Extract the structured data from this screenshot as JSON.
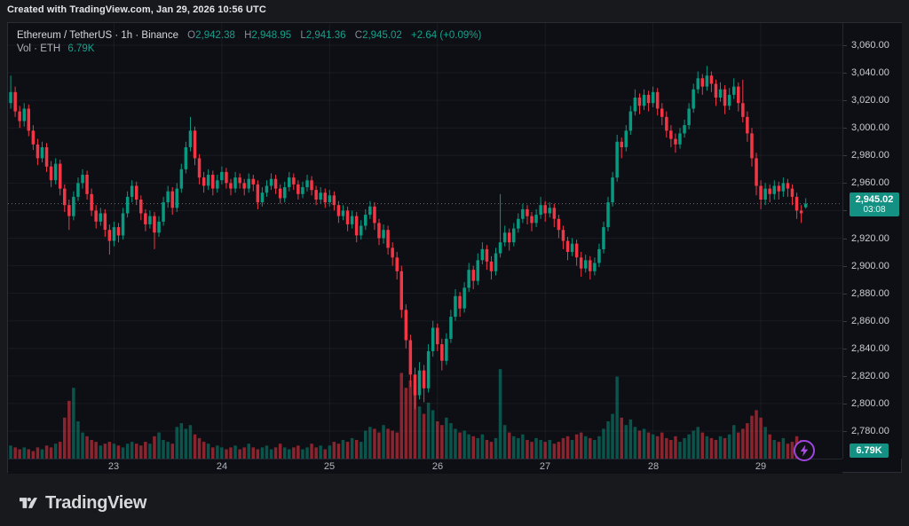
{
  "attribution": "Created with TradingView.com, Jan 29, 2026 10:56 UTC",
  "legend": {
    "title": "Ethereum / TetherUS · 1h · Binance",
    "ohlc": {
      "o_label": "O",
      "o": "2,942.38",
      "h_label": "H",
      "h": "2,948.95",
      "l_label": "L",
      "l": "2,941.36",
      "c_label": "C",
      "c": "2,945.02",
      "change": "+2.64 (+0.09%)"
    },
    "volume_label": "Vol · ETH",
    "volume_value": "6.79K"
  },
  "price_axis": {
    "labels": [
      "3,060.00",
      "3,040.00",
      "3,020.00",
      "3,000.00",
      "2,980.00",
      "2,960.00",
      "2,940.00",
      "2,920.00",
      "2,900.00",
      "2,880.00",
      "2,860.00",
      "2,840.00",
      "2,820.00",
      "2,800.00",
      "2,780.00"
    ],
    "badge": {
      "price": "2,945.02",
      "countdown": "03:08"
    },
    "volume_badge": "6.79K"
  },
  "time_axis": {
    "labels": [
      {
        "text": "23",
        "bar_index": 24
      },
      {
        "text": "24",
        "bar_index": 48
      },
      {
        "text": "25",
        "bar_index": 72
      },
      {
        "text": "26",
        "bar_index": 96
      },
      {
        "text": "27",
        "bar_index": 120
      },
      {
        "text": "28",
        "bar_index": 144
      },
      {
        "text": "29",
        "bar_index": 168
      }
    ]
  },
  "footer": {
    "brand": "TradingView"
  },
  "colors": {
    "up": "#089981",
    "down": "#f23645",
    "vol_up": "rgba(8,153,129,0.5)",
    "vol_down": "rgba(242,54,69,0.55)",
    "grid": "rgba(240,243,250,0.055)",
    "last_line": "#1ca28c",
    "purple": "#a94ae6"
  },
  "chart_data": {
    "type": "candlestick+volume",
    "title": "Ethereum / TetherUS",
    "interval": "1h",
    "exchange": "Binance",
    "last_price": 2945.02,
    "last_change": "+2.64 (+0.09%)",
    "countdown": "03:08",
    "current_bar_volume_k": 6.79,
    "price_ticks": [
      3060,
      3040,
      3020,
      3000,
      2980,
      2960,
      2940,
      2920,
      2900,
      2880,
      2860,
      2840,
      2820,
      2800,
      2780
    ],
    "ylim": [
      2774,
      3064
    ],
    "grid": true,
    "legend_position": "top-left",
    "bars_format": [
      "open",
      "high",
      "low",
      "close",
      "volume_k"
    ],
    "bars": [
      [
        3010,
        3032,
        3004,
        3018,
        8
      ],
      [
        3018,
        3038,
        3014,
        3026,
        7
      ],
      [
        3026,
        3030,
        3008,
        3012,
        6
      ],
      [
        3012,
        3016,
        3000,
        3005,
        5
      ],
      [
        3005,
        3018,
        3001,
        3014,
        6
      ],
      [
        3014,
        3017,
        2994,
        2998,
        5
      ],
      [
        2998,
        3002,
        2984,
        2988,
        4
      ],
      [
        2988,
        2992,
        2973,
        2978,
        6
      ],
      [
        2978,
        2990,
        2975,
        2986,
        5
      ],
      [
        2986,
        2989,
        2968,
        2972,
        7
      ],
      [
        2972,
        2976,
        2957,
        2962,
        6
      ],
      [
        2962,
        2978,
        2959,
        2974,
        8
      ],
      [
        2974,
        2977,
        2951,
        2956,
        9
      ],
      [
        2956,
        2959,
        2939,
        2944,
        22
      ],
      [
        2944,
        2948,
        2926,
        2936,
        31
      ],
      [
        2936,
        2954,
        2933,
        2950,
        38
      ],
      [
        2950,
        2964,
        2947,
        2960,
        20
      ],
      [
        2960,
        2970,
        2956,
        2966,
        14
      ],
      [
        2966,
        2969,
        2948,
        2952,
        12
      ],
      [
        2952,
        2956,
        2936,
        2940,
        10
      ],
      [
        2940,
        2944,
        2927,
        2932,
        9
      ],
      [
        2932,
        2942,
        2929,
        2938,
        7
      ],
      [
        2938,
        2941,
        2921,
        2926,
        8
      ],
      [
        2926,
        2930,
        2908,
        2918,
        9
      ],
      [
        2918,
        2932,
        2914,
        2928,
        8
      ],
      [
        2928,
        2931,
        2917,
        2922,
        7
      ],
      [
        2922,
        2942,
        2919,
        2938,
        6
      ],
      [
        2938,
        2954,
        2935,
        2950,
        8
      ],
      [
        2950,
        2962,
        2946,
        2958,
        9
      ],
      [
        2958,
        2961,
        2944,
        2948,
        8
      ],
      [
        2948,
        2951,
        2933,
        2938,
        7
      ],
      [
        2938,
        2941,
        2925,
        2930,
        9
      ],
      [
        2930,
        2940,
        2927,
        2936,
        8
      ],
      [
        2936,
        2939,
        2912,
        2924,
        12
      ],
      [
        2924,
        2936,
        2921,
        2932,
        14
      ],
      [
        2932,
        2950,
        2929,
        2946,
        10
      ],
      [
        2946,
        2958,
        2942,
        2954,
        9
      ],
      [
        2954,
        2957,
        2937,
        2942,
        8
      ],
      [
        2942,
        2960,
        2939,
        2956,
        17
      ],
      [
        2956,
        2974,
        2953,
        2970,
        19
      ],
      [
        2970,
        2990,
        2967,
        2986,
        16
      ],
      [
        2986,
        3008,
        2983,
        2998,
        18
      ],
      [
        2998,
        3001,
        2973,
        2978,
        13
      ],
      [
        2978,
        2981,
        2959,
        2964,
        11
      ],
      [
        2964,
        2968,
        2953,
        2958,
        9
      ],
      [
        2958,
        2970,
        2955,
        2966,
        8
      ],
      [
        2966,
        2969,
        2951,
        2956,
        6
      ],
      [
        2956,
        2966,
        2953,
        2962,
        7
      ],
      [
        2962,
        2972,
        2959,
        2968,
        6
      ],
      [
        2968,
        2971,
        2956,
        2960,
        5
      ],
      [
        2960,
        2963,
        2951,
        2956,
        6
      ],
      [
        2956,
        2968,
        2953,
        2964,
        7
      ],
      [
        2964,
        2967,
        2956,
        2960,
        5
      ],
      [
        2960,
        2963,
        2951,
        2956,
        6
      ],
      [
        2956,
        2967,
        2953,
        2963,
        8
      ],
      [
        2963,
        2966,
        2954,
        2959,
        6
      ],
      [
        2959,
        2962,
        2941,
        2946,
        5
      ],
      [
        2946,
        2957,
        2943,
        2953,
        6
      ],
      [
        2953,
        2962,
        2950,
        2958,
        7
      ],
      [
        2958,
        2967,
        2955,
        2963,
        5
      ],
      [
        2963,
        2966,
        2952,
        2956,
        6
      ],
      [
        2956,
        2959,
        2945,
        2949,
        8
      ],
      [
        2949,
        2961,
        2946,
        2957,
        6
      ],
      [
        2957,
        2968,
        2954,
        2964,
        5
      ],
      [
        2964,
        2967,
        2955,
        2959,
        6
      ],
      [
        2959,
        2962,
        2948,
        2952,
        7
      ],
      [
        2952,
        2961,
        2949,
        2957,
        5
      ],
      [
        2957,
        2966,
        2954,
        2962,
        6
      ],
      [
        2962,
        2965,
        2951,
        2955,
        8
      ],
      [
        2955,
        2958,
        2944,
        2948,
        6
      ],
      [
        2948,
        2957,
        2945,
        2953,
        7
      ],
      [
        2953,
        2956,
        2942,
        2946,
        5
      ],
      [
        2946,
        2955,
        2943,
        2951,
        7
      ],
      [
        2951,
        2954,
        2940,
        2944,
        9
      ],
      [
        2944,
        2947,
        2931,
        2936,
        8
      ],
      [
        2936,
        2944,
        2933,
        2940,
        10
      ],
      [
        2940,
        2943,
        2925,
        2930,
        9
      ],
      [
        2930,
        2940,
        2927,
        2936,
        11
      ],
      [
        2936,
        2939,
        2917,
        2922,
        10
      ],
      [
        2922,
        2933,
        2919,
        2929,
        9
      ],
      [
        2929,
        2941,
        2926,
        2937,
        15
      ],
      [
        2937,
        2947,
        2934,
        2943,
        17
      ],
      [
        2943,
        2946,
        2926,
        2931,
        16
      ],
      [
        2931,
        2934,
        2915,
        2920,
        14
      ],
      [
        2920,
        2930,
        2916,
        2926,
        18
      ],
      [
        2926,
        2929,
        2908,
        2913,
        16
      ],
      [
        2913,
        2917,
        2900,
        2906,
        15
      ],
      [
        2906,
        2910,
        2890,
        2896,
        14
      ],
      [
        2896,
        2900,
        2862,
        2868,
        46
      ],
      [
        2868,
        2872,
        2840,
        2846,
        38
      ],
      [
        2846,
        2850,
        2812,
        2821,
        42
      ],
      [
        2821,
        2826,
        2796,
        2806,
        40
      ],
      [
        2806,
        2830,
        2803,
        2824,
        28
      ],
      [
        2824,
        2828,
        2801,
        2811,
        24
      ],
      [
        2811,
        2843,
        2808,
        2838,
        30
      ],
      [
        2838,
        2860,
        2834,
        2855,
        26
      ],
      [
        2855,
        2858,
        2838,
        2843,
        20
      ],
      [
        2843,
        2847,
        2824,
        2831,
        18
      ],
      [
        2831,
        2851,
        2828,
        2847,
        22
      ],
      [
        2847,
        2868,
        2844,
        2863,
        19
      ],
      [
        2863,
        2883,
        2860,
        2878,
        16
      ],
      [
        2878,
        2881,
        2863,
        2869,
        14
      ],
      [
        2869,
        2888,
        2866,
        2884,
        15
      ],
      [
        2884,
        2902,
        2881,
        2897,
        13
      ],
      [
        2897,
        2900,
        2883,
        2889,
        12
      ],
      [
        2889,
        2909,
        2886,
        2904,
        11
      ],
      [
        2904,
        2917,
        2901,
        2912,
        13
      ],
      [
        2912,
        2915,
        2897,
        2903,
        10
      ],
      [
        2903,
        2907,
        2890,
        2896,
        9
      ],
      [
        2896,
        2913,
        2893,
        2909,
        11
      ],
      [
        2909,
        2952,
        2906,
        2917,
        48
      ],
      [
        2917,
        2929,
        2914,
        2924,
        18
      ],
      [
        2924,
        2927,
        2911,
        2917,
        14
      ],
      [
        2917,
        2931,
        2914,
        2927,
        12
      ],
      [
        2927,
        2938,
        2924,
        2934,
        11
      ],
      [
        2934,
        2945,
        2931,
        2941,
        13
      ],
      [
        2941,
        2944,
        2930,
        2936,
        10
      ],
      [
        2936,
        2939,
        2925,
        2931,
        9
      ],
      [
        2931,
        2941,
        2928,
        2937,
        11
      ],
      [
        2937,
        2950,
        2934,
        2944,
        10
      ],
      [
        2944,
        2947,
        2932,
        2938,
        9
      ],
      [
        2938,
        2946,
        2935,
        2942,
        10
      ],
      [
        2942,
        2945,
        2928,
        2934,
        8
      ],
      [
        2934,
        2937,
        2920,
        2926,
        9
      ],
      [
        2926,
        2929,
        2912,
        2918,
        11
      ],
      [
        2918,
        2921,
        2904,
        2910,
        12
      ],
      [
        2910,
        2920,
        2907,
        2916,
        10
      ],
      [
        2916,
        2919,
        2900,
        2906,
        13
      ],
      [
        2906,
        2910,
        2892,
        2898,
        14
      ],
      [
        2898,
        2908,
        2895,
        2904,
        12
      ],
      [
        2904,
        2907,
        2890,
        2896,
        11
      ],
      [
        2896,
        2906,
        2893,
        2902,
        10
      ],
      [
        2902,
        2916,
        2899,
        2912,
        12
      ],
      [
        2912,
        2932,
        2909,
        2928,
        16
      ],
      [
        2928,
        2950,
        2925,
        2946,
        20
      ],
      [
        2946,
        2968,
        2943,
        2964,
        24
      ],
      [
        2964,
        2995,
        2961,
        2990,
        44
      ],
      [
        2990,
        2993,
        2978,
        2986,
        22
      ],
      [
        2986,
        3002,
        2983,
        2998,
        18
      ],
      [
        2998,
        3016,
        2995,
        3012,
        21
      ],
      [
        3012,
        3028,
        3009,
        3022,
        17
      ],
      [
        3022,
        3025,
        3010,
        3016,
        15
      ],
      [
        3016,
        3028,
        3013,
        3024,
        16
      ],
      [
        3024,
        3027,
        3012,
        3018,
        14
      ],
      [
        3018,
        3030,
        3015,
        3026,
        13
      ],
      [
        3026,
        3029,
        3009,
        3014,
        12
      ],
      [
        3014,
        3018,
        3002,
        3008,
        14
      ],
      [
        3008,
        3012,
        2993,
        2998,
        11
      ],
      [
        2998,
        3002,
        2986,
        2992,
        10
      ],
      [
        2992,
        2996,
        2982,
        2988,
        12
      ],
      [
        2988,
        3000,
        2985,
        2996,
        9
      ],
      [
        2996,
        3006,
        2993,
        3002,
        11
      ],
      [
        3002,
        3018,
        2999,
        3014,
        13
      ],
      [
        3014,
        3032,
        3011,
        3028,
        15
      ],
      [
        3028,
        3041,
        3025,
        3036,
        17
      ],
      [
        3036,
        3039,
        3024,
        3030,
        14
      ],
      [
        3030,
        3045,
        3027,
        3038,
        12
      ],
      [
        3038,
        3041,
        3026,
        3032,
        11
      ],
      [
        3032,
        3035,
        3016,
        3022,
        10
      ],
      [
        3022,
        3033,
        3019,
        3028,
        12
      ],
      [
        3028,
        3031,
        3010,
        3016,
        11
      ],
      [
        3016,
        3029,
        3013,
        3024,
        13
      ],
      [
        3024,
        3036,
        3021,
        3030,
        18
      ],
      [
        3030,
        3033,
        3012,
        3018,
        14
      ],
      [
        3018,
        3035,
        3004,
        3008,
        16
      ],
      [
        3008,
        3012,
        2990,
        2996,
        19
      ],
      [
        2996,
        3000,
        2972,
        2978,
        23
      ],
      [
        2978,
        2982,
        2951,
        2958,
        26
      ],
      [
        2958,
        2962,
        2941,
        2948,
        22
      ],
      [
        2948,
        2960,
        2944,
        2956,
        17
      ],
      [
        2956,
        2959,
        2946,
        2952,
        13
      ],
      [
        2952,
        2962,
        2948,
        2958,
        10
      ],
      [
        2958,
        2961,
        2948,
        2954,
        9
      ],
      [
        2954,
        2964,
        2950,
        2960,
        11
      ],
      [
        2960,
        2963,
        2950,
        2956,
        8
      ],
      [
        2956,
        2959,
        2944,
        2950,
        9
      ],
      [
        2950,
        2953,
        2934,
        2940,
        12
      ],
      [
        2940,
        2944,
        2931,
        2938,
        10
      ],
      [
        2942.38,
        2948.95,
        2941.36,
        2945.02,
        6.79
      ]
    ]
  }
}
